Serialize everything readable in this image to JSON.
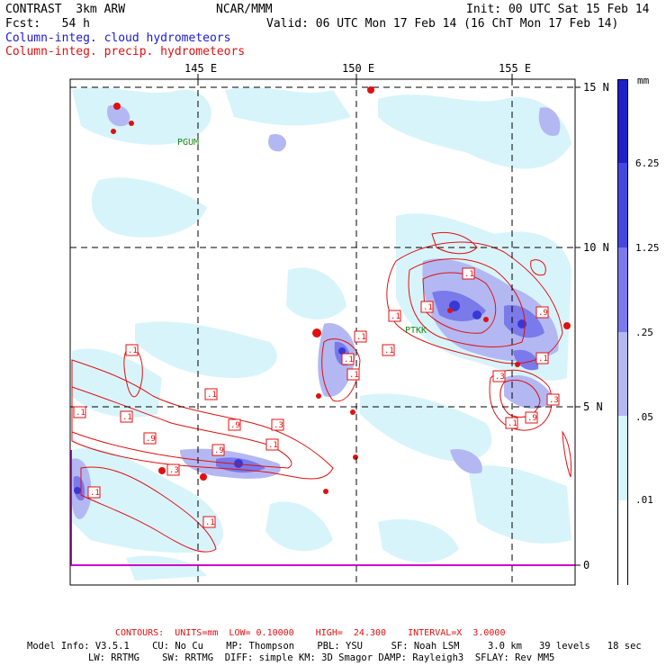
{
  "header": {
    "model": "CONTRAST  3km ARW",
    "org": "NCAR/MMM",
    "init": "Init: 00 UTC Sat 15 Feb 14",
    "fcst": "Fcst:   54 h",
    "valid": "Valid: 06 UTC Mon 17 Feb 14 (16 ChT Mon 17 Feb 14)",
    "field1": "Column-integ. cloud hydrometeors",
    "field2": "Column-integ. precip. hydrometeors"
  },
  "map": {
    "lon_labels": [
      "145 E",
      "150 E",
      "155 E"
    ],
    "lat_labels": [
      "15 N",
      "10 N",
      "5 N",
      "0"
    ],
    "stations": [
      "PGUM",
      "PTKK"
    ],
    "contour_labels": [
      ".1",
      ".1",
      ".1",
      ".1",
      ".9",
      ".1",
      ".9",
      ".3",
      ".9",
      ".1",
      ".3",
      ".1",
      ".1",
      ".1",
      ".1",
      ".1",
      ".1",
      ".1",
      ".9",
      ".3",
      ".3",
      ".1",
      ".9",
      ".1",
      ".1"
    ],
    "colors": {
      "cloud": "#1a1ad0",
      "precip": "#e01010",
      "light": "#d8f4fb",
      "grid": "#000000"
    }
  },
  "colorbar": {
    "unit": "mm",
    "labels": [
      "6.25",
      "1.25",
      ".25",
      ".05",
      ".01"
    ],
    "colors": [
      "#2020c8",
      "#4646e0",
      "#7a7aea",
      "#b3b8f2",
      "#d8f4fb",
      "#ffffff"
    ]
  },
  "footer": {
    "contours": "CONTOURS:  UNITS=mm  LOW= 0.10000    HIGH=  24.300    INTERVAL=X  3.0000",
    "model_info_1": "Model Info: V3.5.1    CU: No Cu    MP: Thompson    PBL: YSU     SF: Noah LSM     3.0 km   39 levels   18 sec",
    "model_info_2": "LW: RRTMG    SW: RRTMG  DIFF: simple KM: 3D Smagor DAMP: Rayleigh3  SFLAY: Rev MM5"
  }
}
